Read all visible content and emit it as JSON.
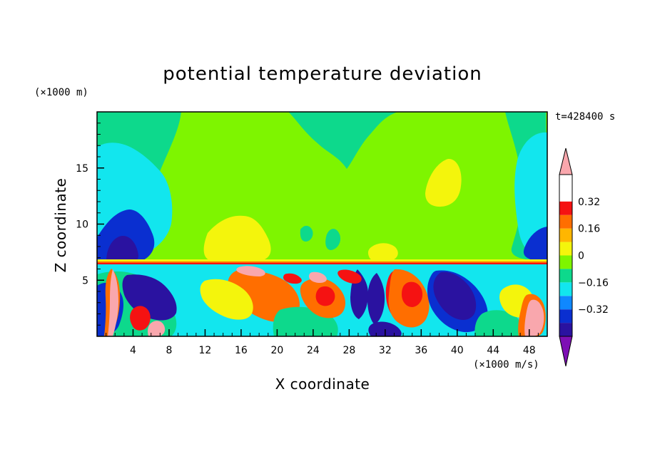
{
  "chart_data": {
    "type": "heatmap",
    "title": "potential temperature deviation",
    "xlabel": "X coordinate",
    "ylabel": "Z coordinate",
    "x_unit": "(×1000 m/s)",
    "y_unit": "(×1000 m)",
    "time_label": "t=428400 s",
    "xlim": [
      0,
      50
    ],
    "ylim": [
      0,
      20
    ],
    "x_ticks": [
      4,
      8,
      12,
      16,
      20,
      24,
      28,
      32,
      36,
      40,
      44,
      48
    ],
    "y_ticks": [
      5,
      10,
      15
    ],
    "colorbar": {
      "min": -0.48,
      "max": 0.48,
      "step": 0.08,
      "labeled_levels": [
        0.32,
        0.16,
        0,
        -0.16,
        -0.32
      ],
      "colors": [
        "#7d0fb4",
        "#2a12a0",
        "#0a2fd0",
        "#0f88ff",
        "#12e6ee",
        "#0dd98c",
        "#7ef500",
        "#f4f50c",
        "#ffb600",
        "#ff6e00",
        "#f51212",
        "#f9a7ad"
      ],
      "extend": "both"
    },
    "regions": [
      {
        "name": "upper-left-cyan",
        "value": -0.18
      },
      {
        "name": "upper-right-cyan",
        "value": -0.18
      },
      {
        "name": "left-blue-core",
        "value": -0.28
      },
      {
        "name": "right-blue-core",
        "value": -0.28
      },
      {
        "name": "upper-yellow-blobs",
        "value": 0.14
      },
      {
        "name": "lower-negative-regions",
        "value": -0.36
      },
      {
        "name": "lower-positive-regions",
        "value": 0.2
      }
    ]
  }
}
